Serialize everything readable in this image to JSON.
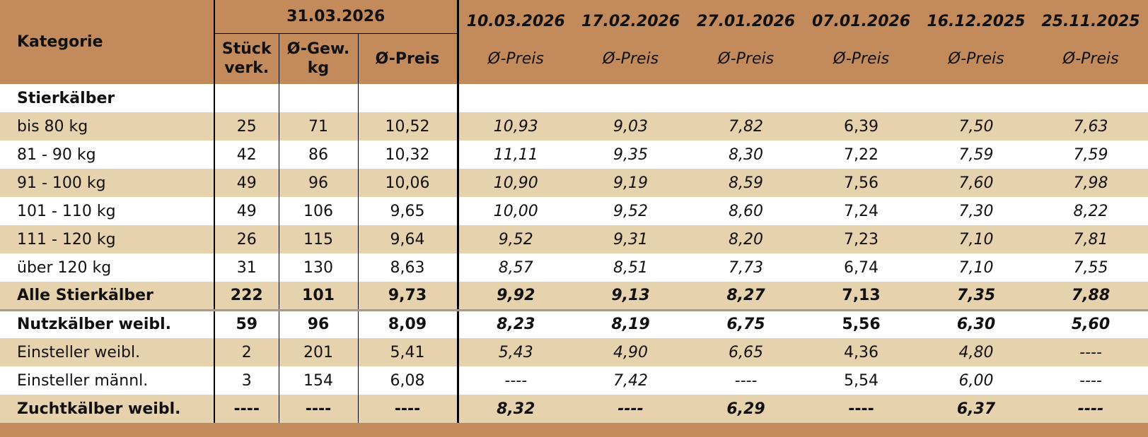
{
  "header": {
    "kategorie": "Kategorie",
    "current_date": "31.03.2026",
    "current_columns": [
      "Stück\nverk.",
      "Ø-Gew.\nkg",
      "Ø-Preis"
    ],
    "history_dates": [
      "10.03.2026",
      "17.02.2026",
      "27.01.2026",
      "07.01.2026",
      "16.12.2025",
      "25.11.2025"
    ],
    "history_columns": [
      "Ø-Preis",
      "Ø-Preis",
      "Ø-Preis",
      "Ø-Preis",
      "Ø-Preis",
      "Ø-Preis"
    ]
  },
  "table": {
    "rows": [
      {
        "label": "Stierkälber"
      },
      {
        "label": "bis 80 kg",
        "values": [
          "25",
          "71",
          "10,52",
          "10,93",
          "9,03",
          "7,82",
          "6,39",
          "7,50",
          "7,63"
        ]
      },
      {
        "label": "81 - 90 kg",
        "values": [
          "42",
          "86",
          "10,32",
          "11,11",
          "9,35",
          "8,30",
          "7,22",
          "7,59",
          "7,59"
        ]
      },
      {
        "label": "91 - 100 kg",
        "values": [
          "49",
          "96",
          "10,06",
          "10,90",
          "9,19",
          "8,59",
          "7,56",
          "7,60",
          "7,98"
        ]
      },
      {
        "label": "101 - 110 kg",
        "values": [
          "49",
          "106",
          "9,65",
          "10,00",
          "9,52",
          "8,60",
          "7,24",
          "7,30",
          "8,22"
        ]
      },
      {
        "label": "111 - 120 kg",
        "values": [
          "26",
          "115",
          "9,64",
          "9,52",
          "9,31",
          "8,20",
          "7,23",
          "7,10",
          "7,81"
        ]
      },
      {
        "label": "über 120 kg",
        "values": [
          "31",
          "130",
          "8,63",
          "8,57",
          "8,51",
          "7,73",
          "6,74",
          "7,10",
          "7,55"
        ]
      },
      {
        "label": "Alle Stierkälber",
        "values": [
          "222",
          "101",
          "9,73",
          "9,92",
          "9,13",
          "8,27",
          "7,13",
          "7,35",
          "7,88"
        ]
      },
      {
        "label": "Nutzkälber weibl.",
        "values": [
          "59",
          "96",
          "8,09",
          "8,23",
          "8,19",
          "6,75",
          "5,56",
          "6,30",
          "5,60"
        ]
      },
      {
        "label": "Einsteller weibl.",
        "values": [
          "2",
          "201",
          "5,41",
          "5,43",
          "4,90",
          "6,65",
          "4,36",
          "4,80",
          "----"
        ]
      },
      {
        "label": "Einsteller männl.",
        "values": [
          "3",
          "154",
          "6,08",
          "----",
          "7,42",
          "----",
          "5,54",
          "6,00",
          "----"
        ]
      },
      {
        "label": "Zuchtkälber weibl.",
        "values": [
          "----",
          "----",
          "----",
          "8,32",
          "----",
          "6,29",
          "----",
          "6,37",
          "----"
        ]
      }
    ]
  }
}
